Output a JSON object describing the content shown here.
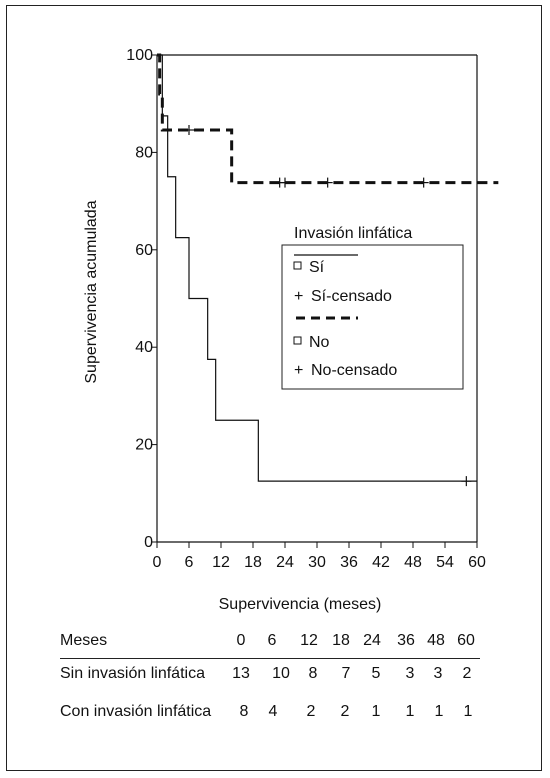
{
  "chart_data": {
    "type": "line",
    "xlabel": "Supervivencia (meses)",
    "ylabel": "Supervivencia acumulada",
    "xlim": [
      0,
      60
    ],
    "ylim": [
      0,
      100
    ],
    "xticks": [
      0,
      6,
      12,
      18,
      24,
      30,
      36,
      42,
      48,
      54,
      60
    ],
    "yticks": [
      0,
      20,
      40,
      60,
      80,
      100
    ],
    "grid": false,
    "legend": {
      "title": "Invasión linfática",
      "placement": "center-right",
      "entries": [
        "Sí",
        "Sí-censado",
        "No",
        "No-censado"
      ]
    },
    "series": [
      {
        "name": "Sí",
        "style": "solid",
        "steps": [
          [
            0,
            100
          ],
          [
            1,
            87.5
          ],
          [
            2,
            75
          ],
          [
            3.5,
            62.5
          ],
          [
            6,
            50
          ],
          [
            9.5,
            37.5
          ],
          [
            11,
            25
          ],
          [
            19,
            12.5
          ],
          [
            60,
            12.5
          ]
        ],
        "censored": [
          [
            58,
            12.5
          ]
        ]
      },
      {
        "name": "No",
        "style": "dashed",
        "steps": [
          [
            0,
            100
          ],
          [
            0.5,
            92
          ],
          [
            1,
            84.6
          ],
          [
            14,
            73.8
          ],
          [
            64,
            73.8
          ]
        ],
        "censored": [
          [
            6,
            84.6
          ],
          [
            23,
            73.8
          ],
          [
            24,
            73.8
          ],
          [
            32,
            73.8
          ],
          [
            50,
            73.8
          ]
        ]
      }
    ]
  },
  "risk_table": {
    "header_label": "Meses",
    "months": [
      "0",
      "6",
      "12",
      "18",
      "24",
      "36",
      "48",
      "60"
    ],
    "rows": [
      {
        "label": "Sin invasión linfática",
        "values": [
          "13",
          "10",
          "8",
          "7",
          "5",
          "3",
          "3",
          "2"
        ]
      },
      {
        "label": "Con invasión linfática",
        "values": [
          "8",
          "4",
          "2",
          "2",
          "1",
          "1",
          "1",
          "1"
        ]
      }
    ]
  },
  "colors": {
    "line": "#111111",
    "frame": "#222222"
  }
}
